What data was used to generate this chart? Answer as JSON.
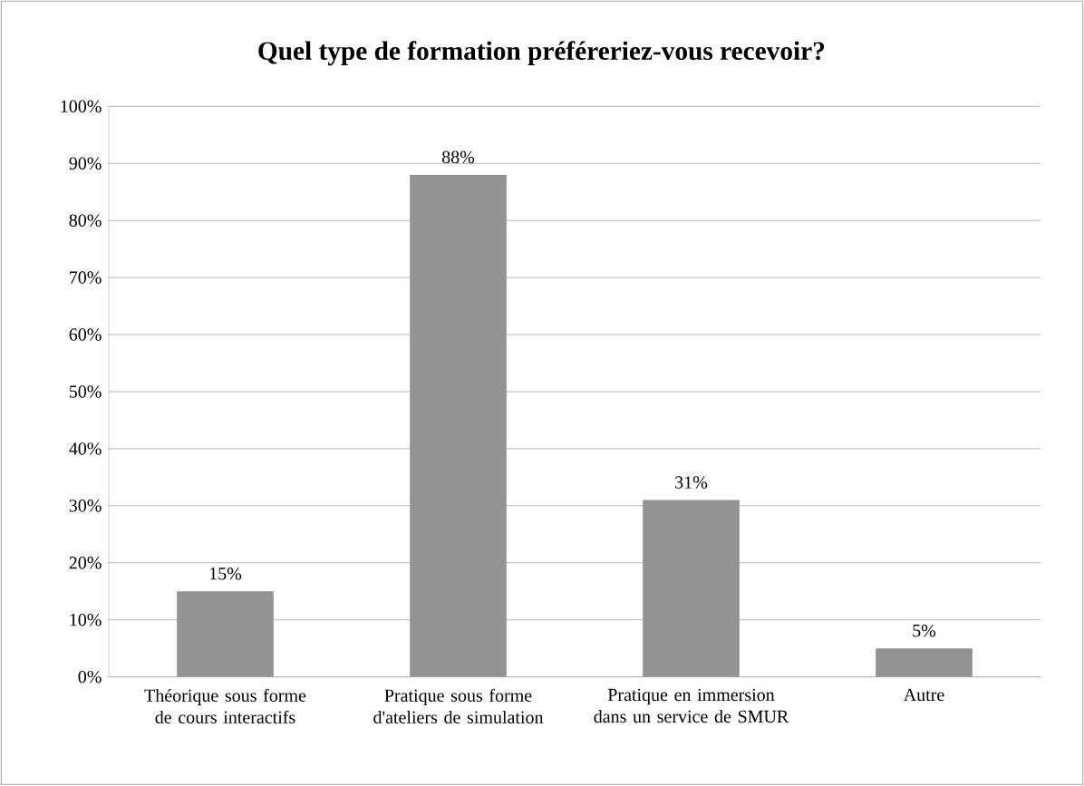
{
  "chart_data": {
    "type": "bar",
    "title": "Quel type de formation préféreriez-vous recevoir?",
    "categories": [
      "Théorique sous forme de cours interactifs",
      "Pratique sous forme d'ateliers de simulation",
      "Pratique en immersion dans un service de SMUR",
      "Autre"
    ],
    "values": [
      15,
      88,
      31,
      5
    ],
    "value_labels": [
      "15%",
      "88%",
      "31%",
      "5%"
    ],
    "color": "#939393",
    "ylim": [
      0,
      100
    ],
    "yticks": [
      {
        "value": 0,
        "label": "0%"
      },
      {
        "value": 10,
        "label": "10%"
      },
      {
        "value": 20,
        "label": "20%"
      },
      {
        "value": 30,
        "label": "30%"
      },
      {
        "value": 40,
        "label": "40%"
      },
      {
        "value": 50,
        "label": "50%"
      },
      {
        "value": 60,
        "label": "60%"
      },
      {
        "value": 70,
        "label": "70%"
      },
      {
        "value": 80,
        "label": "80%"
      },
      {
        "value": 90,
        "label": "90%"
      },
      {
        "value": 100,
        "label": "100%"
      }
    ],
    "grid": "y"
  }
}
